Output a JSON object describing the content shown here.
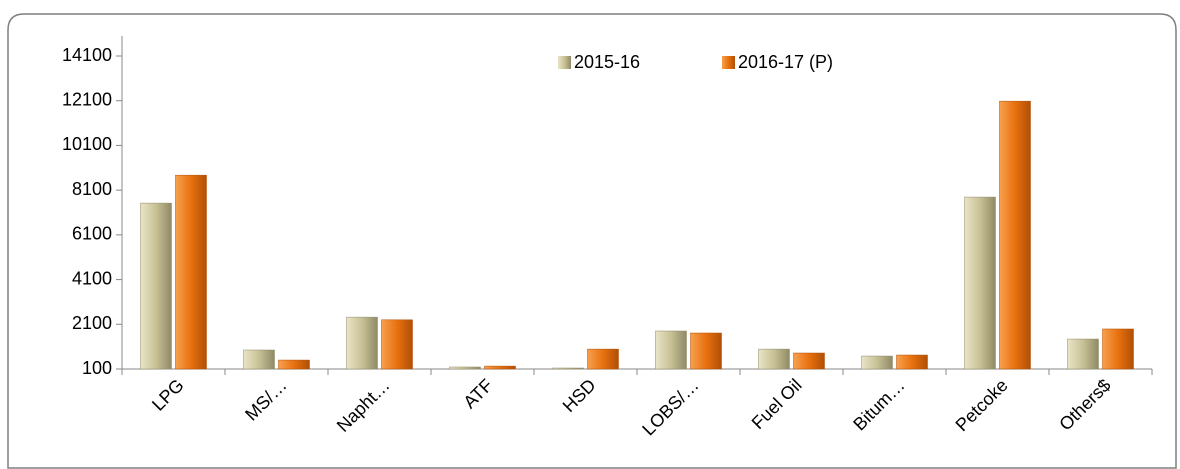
{
  "chart_data": {
    "type": "bar",
    "categories": [
      "LPG",
      "MS/…",
      "Napht…",
      "ATF",
      "HSD",
      "LOBS/…",
      "Fuel Oil",
      "Bitum…",
      "Petcoke",
      "Others$"
    ],
    "series": [
      {
        "name": "2015-16",
        "color": "#c8c196",
        "values": [
          7520,
          950,
          2420,
          190,
          60,
          1800,
          990,
          680,
          7790,
          1440
        ]
      },
      {
        "name": "2016-17 (P)",
        "color": "#e8710f",
        "values": [
          8770,
          500,
          2300,
          230,
          990,
          1710,
          815,
          725,
          12080,
          1890
        ]
      }
    ],
    "ylim": [
      100,
      14100
    ],
    "yticks": [
      100,
      2100,
      4100,
      6100,
      8100,
      10100,
      12100,
      14100
    ],
    "legend": "top"
  }
}
